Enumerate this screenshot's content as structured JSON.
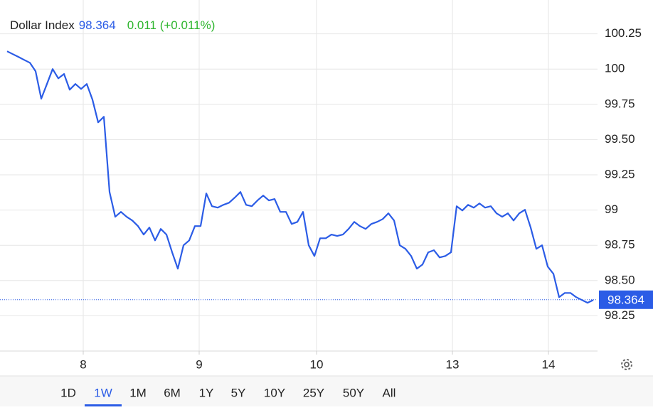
{
  "chart_data": {
    "type": "line",
    "title": "Dollar Index",
    "last_price": 98.364,
    "change": "0.011 (+0.011%)",
    "series": [
      {
        "color": "#2b5ce6",
        "values": [
          100.126,
          100.106,
          100.086,
          100.065,
          100.045,
          99.985,
          99.79,
          99.894,
          100.0,
          99.934,
          99.965,
          99.854,
          99.894,
          99.859,
          99.894,
          99.783,
          99.622,
          99.662,
          99.128,
          98.952,
          98.987,
          98.952,
          98.926,
          98.886,
          98.826,
          98.876,
          98.785,
          98.866,
          98.826,
          98.7,
          98.584,
          98.75,
          98.785,
          98.886,
          98.886,
          99.118,
          99.027,
          99.017,
          99.037,
          99.052,
          99.088,
          99.128,
          99.037,
          99.027,
          99.068,
          99.103,
          99.068,
          99.078,
          98.987,
          98.987,
          98.901,
          98.916,
          98.987,
          98.75,
          98.674,
          98.8,
          98.8,
          98.826,
          98.816,
          98.826,
          98.866,
          98.916,
          98.886,
          98.866,
          98.901,
          98.916,
          98.936,
          98.977,
          98.926,
          98.75,
          98.725,
          98.674,
          98.584,
          98.614,
          98.7,
          98.715,
          98.664,
          98.674,
          98.7,
          99.027,
          98.997,
          99.037,
          99.017,
          99.047,
          99.017,
          99.027,
          98.977,
          98.952,
          98.977,
          98.926,
          98.977,
          99.002,
          98.876,
          98.725,
          98.75,
          98.599,
          98.548,
          98.382,
          98.412,
          98.412,
          98.382,
          98.362,
          98.342,
          98.362
        ]
      }
    ],
    "xlim": [
      -1.25,
      103.75
    ],
    "xticks": [
      {
        "value": 13.375,
        "label": "8"
      },
      {
        "value": 33.75,
        "label": "9"
      },
      {
        "value": 54.375,
        "label": "10"
      },
      {
        "value": 78.25,
        "label": "13"
      },
      {
        "value": 95.125,
        "label": "14"
      }
    ],
    "ylim": [
      98,
      100.5
    ],
    "yticks": [
      98.25,
      {
        "value": 98.5,
        "label": "98.50"
      },
      98.75,
      99,
      99.25,
      {
        "value": 99.5,
        "label": "99.50"
      },
      99.75,
      100,
      100.25
    ],
    "grid": true,
    "ranges": [
      "1D",
      "1W",
      "1M",
      "6M",
      "1Y",
      "5Y",
      "10Y",
      "25Y",
      "50Y",
      "All"
    ],
    "selected_range_index": 1
  }
}
